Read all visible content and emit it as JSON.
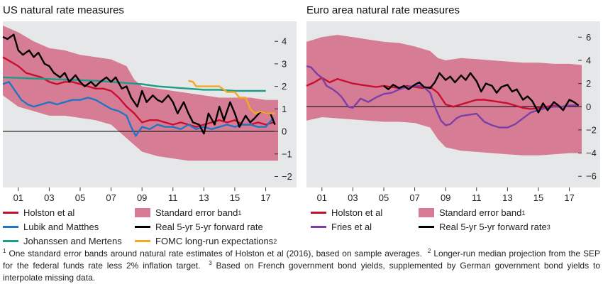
{
  "chart_data": [
    {
      "type": "line",
      "title": "US natural rate measures",
      "xlabel": "",
      "ylabel": "",
      "x_tick_labels": [
        "01",
        "03",
        "05",
        "07",
        "09",
        "11",
        "13",
        "15",
        "17"
      ],
      "x_ticks": [
        2001,
        2003,
        2005,
        2007,
        2009,
        2011,
        2013,
        2015,
        2017
      ],
      "xlim": [
        2000,
        2017.8
      ],
      "y_ticks": [
        4,
        3,
        2,
        1,
        0,
        -1,
        -2
      ],
      "y_tick_labels": [
        "4",
        "3",
        "2",
        "1",
        "0",
        "−1",
        "−2"
      ],
      "ylim": [
        -2.3,
        4.7
      ],
      "zero_line": true,
      "grid": false,
      "band": {
        "name": "Standard error band",
        "x": [
          2000,
          2001,
          2002,
          2003,
          2004,
          2005,
          2006,
          2007,
          2008,
          2008.5,
          2009,
          2010,
          2011,
          2012,
          2013,
          2014,
          2015,
          2016,
          2017,
          2017.8
        ],
        "upper": [
          4.7,
          4.4,
          4.0,
          3.7,
          3.6,
          3.4,
          3.3,
          3.2,
          2.9,
          2.3,
          2.0,
          1.9,
          1.8,
          1.7,
          1.6,
          1.5,
          1.5,
          1.5,
          1.4,
          1.4
        ],
        "lower": [
          1.6,
          1.1,
          0.9,
          0.7,
          0.7,
          0.6,
          0.5,
          0.3,
          -0.3,
          -0.6,
          -0.9,
          -1.1,
          -1.2,
          -1.3,
          -1.3,
          -1.3,
          -1.3,
          -1.3,
          -1.3,
          -1.3
        ]
      },
      "series": [
        {
          "name": "Holston et al",
          "color": "#c8102e",
          "x": [
            2000,
            2000.5,
            2001,
            2001.5,
            2002,
            2002.5,
            2003,
            2003.5,
            2004,
            2004.5,
            2005,
            2005.5,
            2006,
            2006.5,
            2007,
            2007.5,
            2008,
            2008.5,
            2009,
            2009.5,
            2010,
            2010.5,
            2011,
            2011.5,
            2012,
            2012.5,
            2013,
            2013.5,
            2014,
            2014.5,
            2015,
            2015.5,
            2016,
            2016.5,
            2017,
            2017.5
          ],
          "y": [
            3.3,
            3.1,
            2.9,
            2.6,
            2.5,
            2.4,
            2.2,
            2.1,
            2.2,
            2.2,
            2.1,
            2.0,
            1.9,
            1.9,
            1.8,
            1.5,
            1.1,
            0.8,
            0.4,
            0.5,
            0.5,
            0.4,
            0.3,
            0.4,
            0.3,
            0.2,
            0.3,
            0.4,
            0.5,
            0.4,
            0.5,
            0.3,
            0.3,
            0.4,
            0.3,
            0.4
          ]
        },
        {
          "name": "Lubik and Matthes",
          "color": "#1f77c4",
          "x": [
            2000,
            2000.4,
            2000.8,
            2001.2,
            2001.6,
            2002,
            2002.5,
            2003,
            2003.5,
            2004,
            2004.5,
            2005,
            2005.5,
            2006,
            2006.5,
            2007,
            2007.5,
            2008,
            2008.3,
            2008.6,
            2009,
            2009.5,
            2010,
            2010.5,
            2011,
            2011.5,
            2012,
            2012.5,
            2013,
            2013.5,
            2014,
            2014.5,
            2015,
            2015.5,
            2016,
            2016.5,
            2017,
            2017.5
          ],
          "y": [
            2.1,
            2.2,
            1.8,
            1.4,
            1.2,
            1.1,
            1.2,
            1.3,
            1.2,
            1.3,
            1.4,
            1.4,
            1.5,
            1.4,
            1.2,
            1.0,
            0.9,
            0.7,
            0.2,
            -0.2,
            0.2,
            0.1,
            0.3,
            0.2,
            0.2,
            0.1,
            0.3,
            0.1,
            0.2,
            0.1,
            0.2,
            0.3,
            0.2,
            0.3,
            0.3,
            0.2,
            0.2,
            0.6
          ]
        },
        {
          "name": "Johanssen and Mertens",
          "color": "#1a9e89",
          "x": [
            2000,
            2002,
            2004,
            2006,
            2008,
            2009,
            2010,
            2011,
            2012,
            2013,
            2014,
            2015,
            2016,
            2017
          ],
          "y": [
            2.4,
            2.35,
            2.3,
            2.25,
            2.15,
            2.1,
            2.0,
            1.95,
            1.9,
            1.85,
            1.85,
            1.8,
            1.8,
            1.8
          ]
        },
        {
          "name": "Real 5-yr 5-yr forward rate",
          "color": "#000000",
          "x": [
            2000,
            2000.3,
            2000.7,
            2001,
            2001.3,
            2001.7,
            2002,
            2002.3,
            2002.7,
            2003,
            2003.3,
            2003.7,
            2004,
            2004.3,
            2004.7,
            2005,
            2005.3,
            2005.7,
            2006,
            2006.3,
            2006.7,
            2007,
            2007.3,
            2007.7,
            2008,
            2008.3,
            2008.7,
            2009,
            2009.3,
            2009.7,
            2010,
            2010.3,
            2010.7,
            2011,
            2011.3,
            2011.7,
            2012,
            2012.3,
            2012.7,
            2013,
            2013.3,
            2013.7,
            2014,
            2014.3,
            2014.7,
            2015,
            2015.3,
            2015.7,
            2016,
            2016.3,
            2016.7,
            2017,
            2017.3,
            2017.6
          ],
          "y": [
            4.2,
            4.1,
            4.3,
            3.6,
            3.4,
            3.6,
            3.3,
            3.5,
            3.0,
            2.9,
            2.6,
            2.4,
            2.6,
            2.2,
            2.5,
            2.2,
            2.0,
            2.2,
            2.0,
            2.2,
            2.4,
            2.2,
            2.4,
            1.9,
            2.0,
            1.5,
            1.1,
            1.8,
            1.3,
            1.6,
            1.4,
            1.3,
            1.6,
            1.3,
            0.8,
            1.3,
            0.8,
            0.4,
            0.3,
            -0.1,
            0.8,
            0.3,
            1.1,
            0.5,
            1.3,
            0.8,
            0.2,
            0.7,
            0.4,
            0.6,
            0.9,
            0.8,
            0.8,
            0.3
          ]
        },
        {
          "name": "FOMC long-run expectations",
          "color": "#f5a623",
          "x": [
            2012,
            2012.3,
            2012.5,
            2013,
            2013.5,
            2014,
            2014.5,
            2015,
            2015.3,
            2015.7,
            2016,
            2016.3,
            2016.7,
            2017,
            2017.3,
            2017.6
          ],
          "y": [
            2.25,
            2.2,
            2.0,
            2.0,
            2.0,
            2.0,
            1.75,
            1.75,
            1.5,
            1.5,
            1.0,
            0.8,
            0.9,
            0.8,
            0.8,
            0.8
          ]
        }
      ]
    },
    {
      "type": "line",
      "title": "Euro area natural rate measures",
      "xlabel": "",
      "ylabel": "",
      "x_tick_labels": [
        "01",
        "03",
        "05",
        "07",
        "09",
        "11",
        "13",
        "15",
        "17"
      ],
      "x_ticks": [
        2001,
        2003,
        2005,
        2007,
        2009,
        2011,
        2013,
        2015,
        2017
      ],
      "xlim": [
        2000,
        2017.8
      ],
      "y_ticks": [
        6,
        4,
        2,
        0,
        -2,
        -4,
        -6
      ],
      "y_tick_labels": [
        "6",
        "4",
        "2",
        "0",
        "−2",
        "−4",
        "−6"
      ],
      "ylim": [
        -6.6,
        7.0
      ],
      "zero_line": true,
      "grid": false,
      "band": {
        "name": "Standard error band",
        "x": [
          2000,
          2001,
          2002,
          2003,
          2004,
          2005,
          2006,
          2007,
          2008,
          2008.5,
          2009,
          2010,
          2011,
          2012,
          2013,
          2014,
          2015,
          2016,
          2017,
          2017.8
        ],
        "upper": [
          5.6,
          6.0,
          6.2,
          6.0,
          5.8,
          5.6,
          5.5,
          5.2,
          4.8,
          4.2,
          4.0,
          4.2,
          4.1,
          4.0,
          3.9,
          3.8,
          3.8,
          3.7,
          3.7,
          3.6
        ],
        "lower": [
          -1.2,
          -0.9,
          -1.0,
          -1.1,
          -1.2,
          -1.3,
          -1.3,
          -1.4,
          -1.8,
          -2.8,
          -3.5,
          -3.8,
          -3.9,
          -4.0,
          -4.1,
          -4.2,
          -4.2,
          -4.1,
          -4.0,
          -4.0
        ]
      },
      "series": [
        {
          "name": "Holston et al",
          "color": "#c8102e",
          "x": [
            2000,
            2000.5,
            2001,
            2001.5,
            2002,
            2002.5,
            2003,
            2003.5,
            2004,
            2004.5,
            2005,
            2005.5,
            2006,
            2006.5,
            2007,
            2007.5,
            2008,
            2008.5,
            2009,
            2009.5,
            2010,
            2010.5,
            2011,
            2011.5,
            2012,
            2012.5,
            2013,
            2013.5,
            2014,
            2014.5,
            2015,
            2015.5,
            2016,
            2016.5,
            2017,
            2017.5
          ],
          "y": [
            1.8,
            2.1,
            2.5,
            2.1,
            2.4,
            2.2,
            2.0,
            1.9,
            1.8,
            1.7,
            1.8,
            1.7,
            1.6,
            1.8,
            1.7,
            1.6,
            1.7,
            1.2,
            0.2,
            0.0,
            0.2,
            0.4,
            0.6,
            0.6,
            0.5,
            0.4,
            0.3,
            0.1,
            -0.1,
            -0.2,
            -0.1,
            0.0,
            0.1,
            0.0,
            0.1,
            0.1
          ]
        },
        {
          "name": "Fries et al",
          "color": "#7b3fa8",
          "x": [
            2000,
            2000.3,
            2000.7,
            2001,
            2001.3,
            2001.7,
            2002,
            2002.3,
            2002.7,
            2003,
            2003.5,
            2004,
            2004.5,
            2005,
            2005.5,
            2006,
            2006.5,
            2007,
            2007.5,
            2008,
            2008.3,
            2008.7,
            2009,
            2009.3,
            2009.7,
            2010,
            2010.5,
            2011,
            2011.5,
            2012,
            2012.5,
            2013,
            2013.5,
            2014,
            2014.5,
            2015,
            2015.5,
            2016,
            2016.5,
            2017,
            2017.5
          ],
          "y": [
            3.5,
            3.4,
            2.8,
            2.5,
            1.8,
            1.5,
            1.2,
            0.8,
            0.0,
            -0.1,
            0.7,
            0.4,
            0.8,
            1.1,
            1.2,
            1.5,
            1.7,
            1.8,
            1.8,
            1.2,
            0.0,
            -1.2,
            -1.6,
            -1.5,
            -1.0,
            -0.8,
            -0.7,
            -0.6,
            -1.3,
            -1.6,
            -1.8,
            -1.8,
            -1.5,
            -1.0,
            -0.5,
            -0.3,
            -0.1,
            0.0,
            0.0,
            0.1,
            0.1
          ]
        },
        {
          "name": "Real 5-yr 5-yr forward rate",
          "color": "#000000",
          "x": [
            2005,
            2005.3,
            2005.6,
            2006,
            2006.3,
            2006.6,
            2007,
            2007.3,
            2007.6,
            2008,
            2008.3,
            2008.6,
            2009,
            2009.3,
            2009.6,
            2010,
            2010.3,
            2010.6,
            2011,
            2011.3,
            2011.6,
            2012,
            2012.3,
            2012.6,
            2013,
            2013.3,
            2013.6,
            2014,
            2014.3,
            2014.6,
            2015,
            2015.3,
            2015.6,
            2016,
            2016.3,
            2016.6,
            2017,
            2017.3,
            2017.6
          ],
          "y": [
            1.8,
            1.5,
            1.9,
            1.6,
            1.8,
            1.5,
            1.9,
            2.1,
            1.7,
            1.6,
            2.1,
            2.9,
            2.3,
            2.6,
            2.1,
            2.7,
            2.3,
            2.9,
            2.2,
            1.3,
            2.0,
            1.8,
            1.2,
            1.7,
            1.9,
            1.3,
            1.5,
            0.6,
            0.9,
            0.5,
            -0.5,
            0.3,
            -0.3,
            0.4,
            0.1,
            -0.3,
            0.6,
            0.4,
            0.1
          ]
        }
      ]
    }
  ],
  "legend_us": [
    {
      "label": "Holston et al",
      "kind": "line",
      "color": "#c8102e"
    },
    {
      "label": "Standard error band",
      "sup": "1",
      "kind": "box",
      "color": "#d67c95"
    },
    {
      "label": "Lubik and Matthes",
      "kind": "line",
      "color": "#1f77c4"
    },
    {
      "label": "Real 5-yr 5-yr forward rate",
      "kind": "line",
      "color": "#000000"
    },
    {
      "label": "Johanssen and Mertens",
      "kind": "line",
      "color": "#1a9e89"
    },
    {
      "label": "FOMC long-run expectations",
      "sup": "2",
      "kind": "line",
      "color": "#f5a623"
    }
  ],
  "legend_eu": [
    {
      "label": "Holston et al",
      "kind": "line",
      "color": "#c8102e"
    },
    {
      "label": "Standard error band",
      "sup": "1",
      "kind": "box",
      "color": "#d67c95"
    },
    {
      "label": "Fries et al",
      "kind": "line",
      "color": "#7b3fa8"
    },
    {
      "label": "Real 5-yr 5-yr forward rate",
      "sup": "3",
      "kind": "line",
      "color": "#000000"
    }
  ],
  "footnotes": {
    "n1": "1",
    "t1": "One standard error bands around natural rate estimates of Holston et al (2016), based on sample averages.",
    "n2": "2",
    "t2": "Longer-run median projection from the SEP for the federal funds rate less 2% inflation target.",
    "n3": "3",
    "t3": "Based on French government bond yields, supplemented by German government bond yields to interpolate missing data."
  },
  "colors": {
    "panel_bg": "#e6e7e8",
    "band": "#d67c95",
    "zero_line": "#000000"
  }
}
